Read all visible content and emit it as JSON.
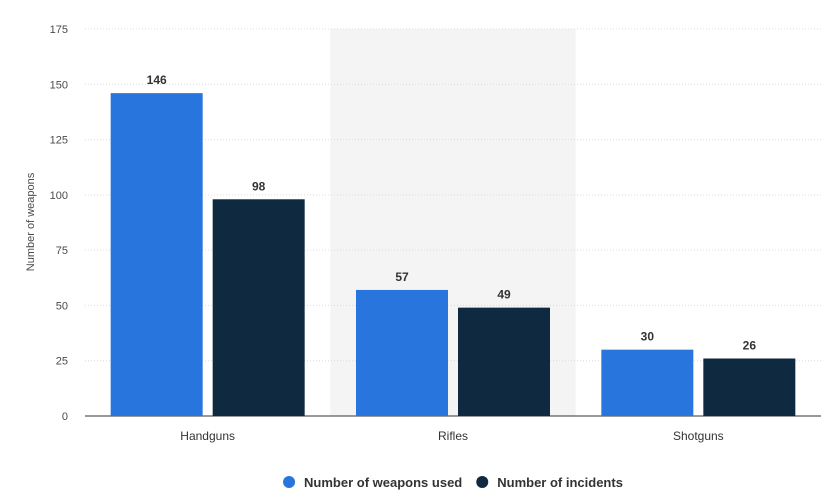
{
  "chart_data": {
    "type": "bar",
    "categories": [
      "Handguns",
      "Rifles",
      "Shotguns"
    ],
    "series": [
      {
        "name": "Number of weapons used",
        "values": [
          146,
          57,
          30
        ],
        "color": "#2876dd"
      },
      {
        "name": "Number of incidents",
        "values": [
          98,
          49,
          26
        ],
        "color": "#0f2a40"
      }
    ],
    "ylabel": "Number of weapons",
    "xlabel": "",
    "ylim": [
      0,
      175
    ],
    "yticks": [
      0,
      25,
      50,
      75,
      100,
      125,
      150,
      175
    ],
    "grid": true,
    "highlight_category": "Rifles",
    "highlight_color": "#f4f4f4",
    "legend_position": "bottom-center"
  }
}
